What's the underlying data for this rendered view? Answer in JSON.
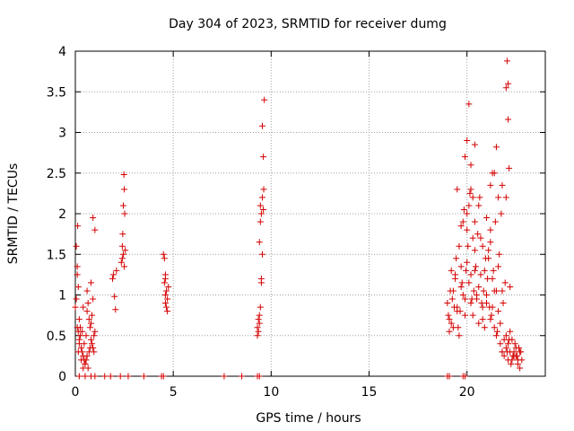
{
  "chart_data": {
    "type": "scatter",
    "title": "Day 304 of 2023, SRMTID for receiver dumg",
    "xlabel": "GPS time / hours",
    "ylabel": "SRMTID / TECUs",
    "xlim": [
      0,
      24
    ],
    "ylim": [
      0,
      4
    ],
    "xticks": [
      0,
      5,
      10,
      15,
      20
    ],
    "yticks": [
      0,
      0.5,
      1,
      1.5,
      2,
      2.5,
      3,
      3.5,
      4
    ],
    "grid": true,
    "marker": "+",
    "color": "#d40000",
    "series": [
      {
        "name": "SRMTID",
        "x": [
          0.0,
          0.05,
          0.1,
          0.12,
          0.15,
          0.2,
          0.25,
          0.3,
          0.35,
          0.4,
          0.45,
          0.5,
          0.55,
          0.6,
          0.65,
          0.7,
          0.75,
          0.8,
          0.85,
          0.9,
          0.95,
          1.0,
          0.05,
          0.1,
          0.15,
          0.2,
          0.3,
          0.4,
          0.5,
          0.6,
          0.7,
          0.8,
          0.9,
          1.0,
          0.1,
          0.2,
          0.4,
          0.6,
          0.8,
          0.9,
          0.15,
          0.25,
          0.35,
          0.45,
          0.55,
          0.65,
          0.75,
          0.85,
          0.95,
          1.9,
          1.95,
          2.0,
          2.05,
          2.1,
          2.35,
          2.4,
          2.42,
          2.45,
          2.48,
          2.5,
          2.52,
          2.55,
          2.4,
          2.45,
          2.5,
          4.5,
          4.55,
          4.6,
          4.6,
          4.65,
          4.7,
          4.75,
          4.6,
          4.55,
          4.7,
          4.65,
          4.6,
          9.3,
          9.35,
          9.4,
          9.45,
          9.5,
          9.55,
          9.6,
          9.62,
          9.65,
          9.4,
          9.45,
          9.5,
          9.55,
          9.6,
          9.4,
          9.5,
          9.55,
          9.3,
          9.35,
          9.45,
          19.0,
          19.1,
          19.2,
          19.3,
          19.4,
          19.5,
          19.6,
          19.7,
          19.8,
          19.9,
          20.0,
          20.1,
          20.2,
          20.3,
          20.4,
          20.5,
          20.6,
          20.7,
          20.8,
          20.9,
          21.0,
          21.1,
          21.2,
          21.3,
          21.4,
          21.5,
          21.6,
          21.7,
          21.8,
          21.9,
          22.0,
          22.1,
          22.2,
          22.3,
          22.4,
          22.5,
          22.6,
          22.7,
          22.8,
          19.1,
          19.3,
          19.5,
          19.7,
          19.9,
          20.1,
          20.3,
          20.5,
          20.7,
          20.9,
          21.1,
          21.3,
          21.5,
          21.7,
          21.9,
          22.1,
          22.3,
          22.5,
          22.7,
          19.2,
          19.4,
          19.6,
          19.8,
          20.0,
          20.2,
          20.4,
          20.6,
          20.8,
          21.0,
          21.2,
          21.4,
          21.6,
          21.8,
          22.0,
          22.2,
          22.4,
          22.6,
          19.05,
          19.25,
          19.45,
          19.65,
          19.85,
          20.05,
          20.25,
          20.45,
          20.65,
          20.85,
          21.05,
          21.25,
          21.45,
          21.65,
          21.85,
          22.05,
          22.25,
          22.45,
          22.65,
          19.15,
          19.35,
          19.55,
          19.75,
          19.95,
          20.15,
          20.35,
          20.55,
          20.75,
          20.95,
          21.15,
          21.35,
          21.55,
          21.75,
          21.95,
          22.15,
          22.35,
          22.55,
          22.75,
          19.5,
          19.7,
          19.9,
          20.0,
          20.2,
          20.4,
          20.6,
          20.8,
          21.0,
          21.2,
          21.4,
          21.6,
          21.8,
          22.0,
          22.2,
          20.0,
          20.1,
          20.2,
          20.3,
          21.2,
          21.5,
          21.8,
          22.0,
          22.05,
          22.1,
          22.15,
          22.1,
          21.3,
          20.4,
          0.2,
          0.5,
          0.8,
          1.0,
          1.5,
          1.8,
          2.3,
          2.7,
          3.5,
          4.4,
          4.5,
          7.6,
          8.5,
          9.3,
          9.4,
          19.0,
          19.1,
          19.8,
          19.9
        ],
        "y": [
          0.85,
          1.6,
          1.35,
          1.85,
          1.1,
          0.7,
          0.5,
          0.35,
          0.3,
          0.25,
          0.2,
          0.15,
          0.5,
          0.8,
          0.9,
          0.7,
          0.6,
          0.45,
          0.4,
          0.35,
          0.3,
          0.55,
          0.95,
          1.25,
          0.55,
          0.45,
          0.2,
          0.1,
          0.15,
          0.25,
          0.3,
          1.15,
          1.95,
          1.8,
          0.6,
          0.4,
          0.85,
          1.05,
          0.65,
          0.95,
          0.3,
          0.6,
          0.55,
          0.4,
          0.2,
          0.1,
          0.35,
          0.75,
          0.5,
          1.2,
          1.25,
          0.98,
          0.82,
          1.3,
          1.4,
          1.45,
          1.75,
          2.1,
          2.48,
          2.3,
          2.0,
          1.55,
          1.6,
          1.5,
          1.35,
          1.5,
          1.45,
          1.2,
          1.0,
          0.85,
          0.95,
          1.1,
          0.9,
          1.15,
          0.8,
          1.05,
          1.25,
          0.6,
          0.55,
          0.75,
          0.85,
          1.15,
          1.5,
          2.05,
          2.3,
          3.4,
          1.65,
          1.9,
          2.0,
          2.2,
          2.7,
          0.65,
          1.2,
          3.08,
          0.5,
          0.7,
          2.1,
          0.9,
          0.7,
          1.3,
          0.6,
          1.2,
          0.8,
          1.6,
          1.1,
          1.9,
          0.95,
          1.4,
          2.1,
          1.25,
          0.75,
          1.55,
          1.0,
          0.65,
          1.7,
          0.85,
          1.3,
          0.9,
          1.45,
          0.7,
          1.2,
          1.05,
          0.5,
          0.8,
          0.4,
          0.3,
          0.25,
          0.35,
          0.2,
          0.3,
          0.45,
          0.25,
          0.35,
          0.15,
          0.3,
          0.2,
          0.55,
          1.05,
          0.85,
          1.35,
          0.75,
          1.15,
          1.7,
          0.95,
          1.25,
          0.6,
          1.55,
          0.85,
          1.05,
          0.65,
          0.45,
          0.4,
          0.2,
          0.25,
          0.1,
          0.65,
          1.25,
          0.5,
          1.0,
          1.8,
          0.9,
          1.3,
          1.1,
          0.7,
          1.0,
          1.65,
          0.6,
          1.35,
          0.3,
          0.5,
          0.55,
          0.3,
          0.2,
          0.75,
          0.95,
          1.45,
          0.8,
          2.05,
          1.6,
          0.95,
          1.35,
          2.2,
          1.05,
          1.2,
          0.75,
          1.9,
          1.5,
          0.9,
          0.3,
          0.15,
          0.4,
          0.35,
          1.05,
          0.85,
          0.6,
          1.15,
          1.3,
          2.25,
          1.05,
          1.75,
          0.9,
          1.45,
          0.85,
          1.3,
          0.55,
          2.0,
          1.15,
          0.45,
          0.25,
          0.25,
          0.3,
          2.3,
          1.85,
          2.7,
          2.0,
          2.3,
          1.9,
          2.1,
          1.6,
          1.95,
          1.8,
          2.5,
          2.2,
          1.05,
          2.2,
          1.1,
          2.9,
          3.35,
          2.6,
          2.2,
          2.35,
          2.82,
          2.35,
          3.55,
          3.88,
          3.16,
          2.56,
          3.6,
          2.5,
          2.85,
          0,
          0,
          0,
          0,
          0,
          0,
          0,
          0,
          0,
          0,
          0,
          0,
          0,
          0,
          0,
          0,
          0,
          0,
          0
        ]
      }
    ]
  }
}
